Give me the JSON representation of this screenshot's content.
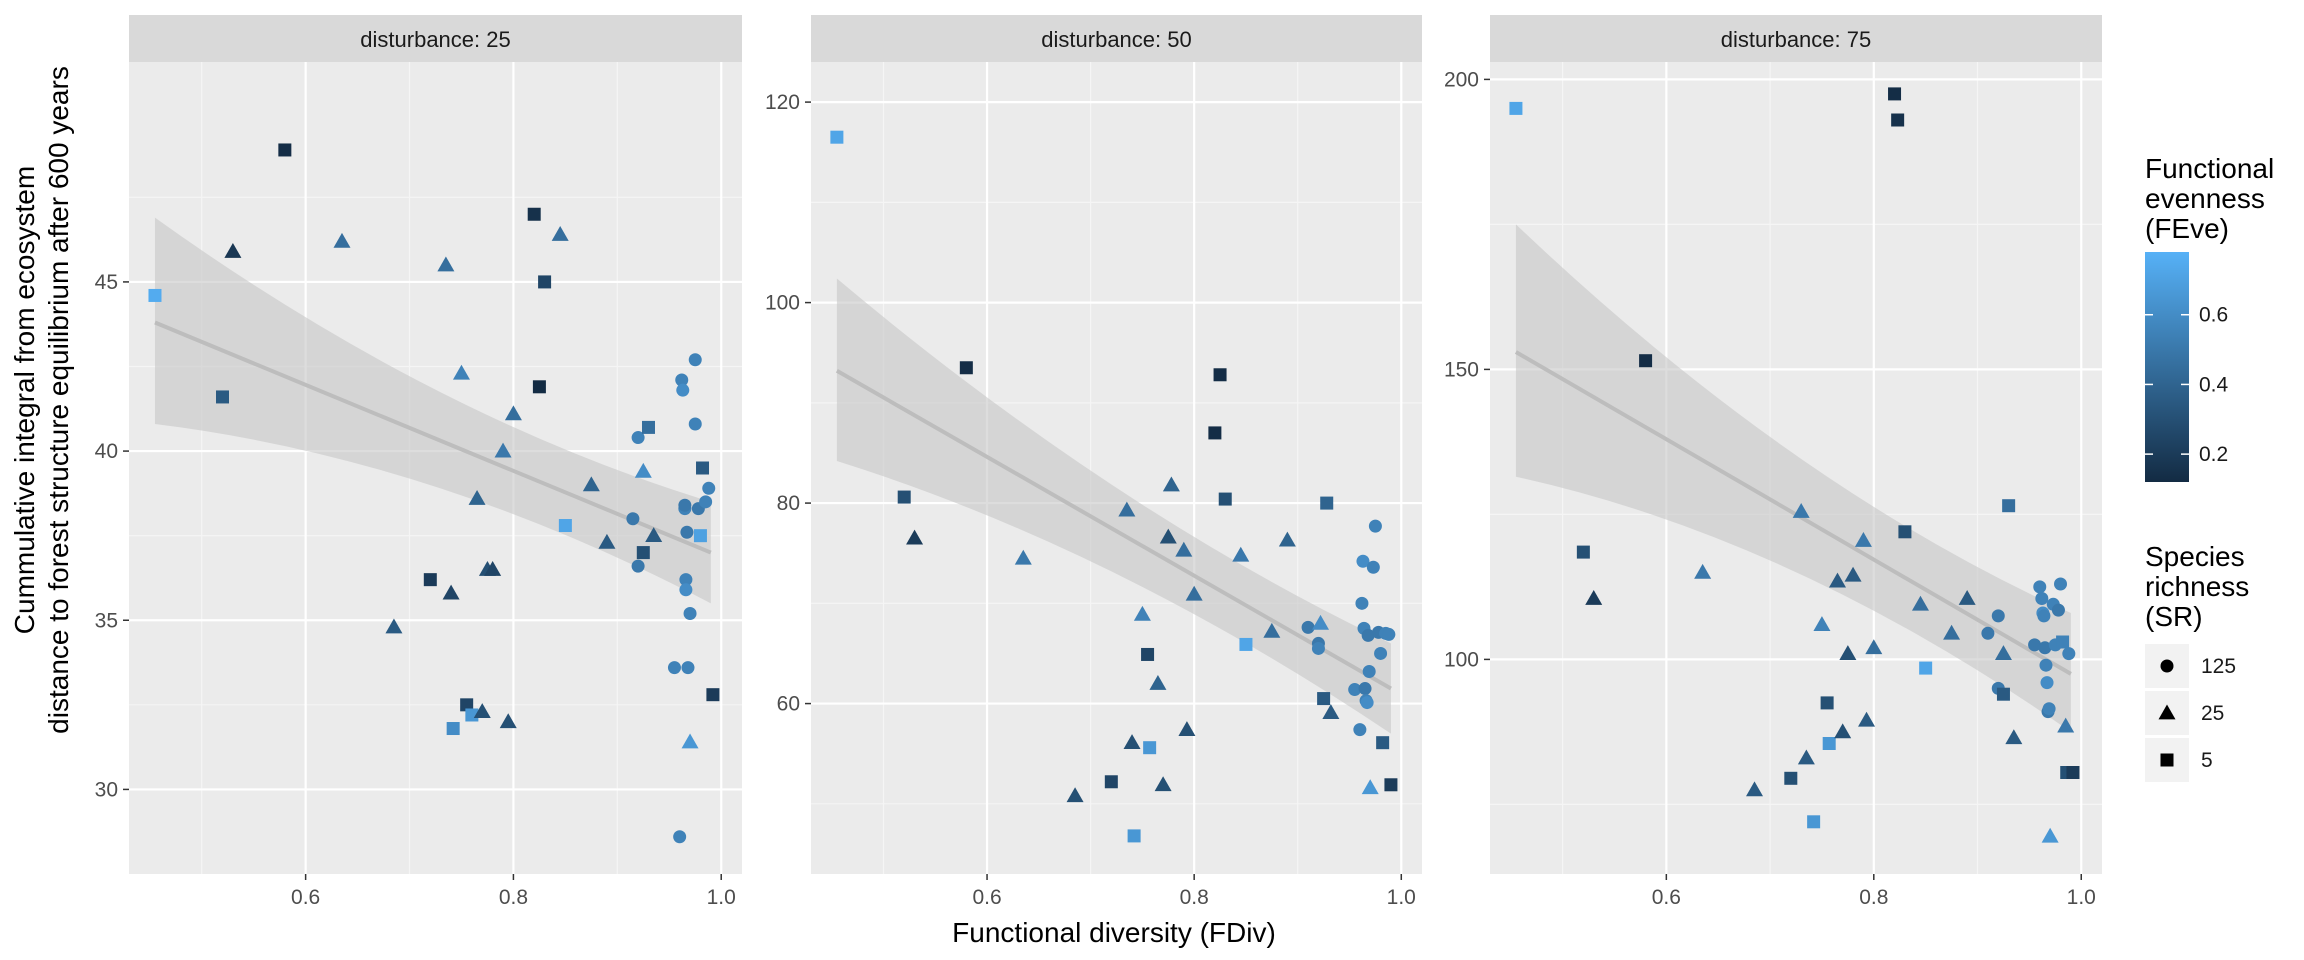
{
  "chart_data": {
    "type": "scatter",
    "xlabel": "Functional diversity (FDiv)",
    "ylabel_lines": [
      "Cummulative integral from ecosystem",
      "distance to forest structure equilibrium after 600 years"
    ],
    "legend_color": {
      "title_lines": [
        "Functional",
        "evenness",
        "(FEve)"
      ],
      "ticks": [
        0.2,
        0.4,
        0.6
      ],
      "range": [
        0.12,
        0.78
      ],
      "low_color": "#132B43",
      "high_color": "#56B1F7"
    },
    "legend_shape": {
      "title_lines": [
        "Species",
        "richness",
        "(SR)"
      ],
      "entries": [
        {
          "label": "125",
          "shape": "circle"
        },
        {
          "label": "25",
          "shape": "triangle"
        },
        {
          "label": "5",
          "shape": "square"
        }
      ]
    },
    "panels": [
      {
        "strip": "disturbance: 25",
        "xlim": [
          0.43,
          1.02
        ],
        "ylim": [
          27.5,
          51.5
        ],
        "xticks": [
          0.6,
          0.8,
          1.0
        ],
        "xtick_labels": [
          "0.6",
          "0.8",
          "1.0"
        ],
        "yticks": [
          30,
          35,
          40,
          45
        ],
        "ytick_labels": [
          "30",
          "35",
          "40",
          "45"
        ],
        "fit": {
          "x0": 0.455,
          "y0": 43.8,
          "x1": 0.99,
          "y1": 37.0,
          "lo0": 40.8,
          "hi0": 46.9,
          "lo1": 35.5,
          "hi1": 38.5
        },
        "points": [
          [
            0.455,
            44.6,
            0.75,
            "square"
          ],
          [
            0.52,
            41.6,
            0.35,
            "square"
          ],
          [
            0.53,
            45.9,
            0.18,
            "triangle"
          ],
          [
            0.58,
            48.9,
            0.13,
            "square"
          ],
          [
            0.635,
            46.2,
            0.45,
            "triangle"
          ],
          [
            0.685,
            34.8,
            0.35,
            "triangle"
          ],
          [
            0.72,
            36.2,
            0.2,
            "square"
          ],
          [
            0.735,
            45.5,
            0.45,
            "triangle"
          ],
          [
            0.74,
            35.8,
            0.25,
            "triangle"
          ],
          [
            0.742,
            31.8,
            0.6,
            "square"
          ],
          [
            0.75,
            42.3,
            0.55,
            "triangle"
          ],
          [
            0.755,
            32.5,
            0.25,
            "square"
          ],
          [
            0.76,
            32.2,
            0.65,
            "square"
          ],
          [
            0.765,
            38.6,
            0.4,
            "triangle"
          ],
          [
            0.77,
            32.3,
            0.3,
            "triangle"
          ],
          [
            0.775,
            36.5,
            0.3,
            "triangle"
          ],
          [
            0.78,
            36.5,
            0.25,
            "triangle"
          ],
          [
            0.79,
            40.0,
            0.5,
            "triangle"
          ],
          [
            0.795,
            32.0,
            0.3,
            "triangle"
          ],
          [
            0.8,
            41.1,
            0.45,
            "triangle"
          ],
          [
            0.82,
            47.0,
            0.15,
            "square"
          ],
          [
            0.825,
            41.9,
            0.12,
            "square"
          ],
          [
            0.83,
            45.0,
            0.25,
            "square"
          ],
          [
            0.845,
            46.4,
            0.45,
            "triangle"
          ],
          [
            0.85,
            37.8,
            0.72,
            "square"
          ],
          [
            0.875,
            39.0,
            0.4,
            "triangle"
          ],
          [
            0.89,
            37.3,
            0.35,
            "triangle"
          ],
          [
            0.915,
            38.0,
            0.5,
            "circle"
          ],
          [
            0.92,
            36.6,
            0.5,
            "circle"
          ],
          [
            0.92,
            40.4,
            0.55,
            "circle"
          ],
          [
            0.925,
            39.4,
            0.6,
            "triangle"
          ],
          [
            0.925,
            37.0,
            0.3,
            "square"
          ],
          [
            0.93,
            40.7,
            0.45,
            "square"
          ],
          [
            0.935,
            37.5,
            0.35,
            "triangle"
          ],
          [
            0.955,
            33.6,
            0.55,
            "circle"
          ],
          [
            0.96,
            28.6,
            0.55,
            "circle"
          ],
          [
            0.962,
            42.1,
            0.55,
            "circle"
          ],
          [
            0.963,
            41.8,
            0.6,
            "circle"
          ],
          [
            0.965,
            38.3,
            0.55,
            "circle"
          ],
          [
            0.965,
            38.4,
            0.5,
            "circle"
          ],
          [
            0.966,
            36.2,
            0.55,
            "circle"
          ],
          [
            0.966,
            35.9,
            0.6,
            "circle"
          ],
          [
            0.967,
            37.6,
            0.5,
            "circle"
          ],
          [
            0.968,
            33.6,
            0.55,
            "circle"
          ],
          [
            0.97,
            35.2,
            0.55,
            "circle"
          ],
          [
            0.97,
            31.4,
            0.65,
            "triangle"
          ],
          [
            0.975,
            40.8,
            0.55,
            "circle"
          ],
          [
            0.975,
            42.7,
            0.55,
            "circle"
          ],
          [
            0.978,
            38.3,
            0.5,
            "circle"
          ],
          [
            0.98,
            37.5,
            0.7,
            "square"
          ],
          [
            0.982,
            39.5,
            0.35,
            "square"
          ],
          [
            0.985,
            38.5,
            0.55,
            "circle"
          ],
          [
            0.988,
            38.9,
            0.55,
            "circle"
          ],
          [
            0.992,
            32.8,
            0.2,
            "square"
          ]
        ]
      },
      {
        "strip": "disturbance: 50",
        "xlim": [
          0.43,
          1.02
        ],
        "ylim": [
          43,
          124
        ],
        "xticks": [
          0.6,
          0.8,
          1.0
        ],
        "xtick_labels": [
          "0.6",
          "0.8",
          "1.0"
        ],
        "yticks": [
          60,
          80,
          100,
          120
        ],
        "ytick_labels": [
          "60",
          "80",
          "100",
          "120"
        ],
        "fit": {
          "x0": 0.455,
          "y0": 93.2,
          "x1": 0.99,
          "y1": 61.5,
          "lo0": 84.2,
          "hi0": 102.4,
          "lo1": 57.0,
          "hi1": 66.0
        },
        "points": [
          [
            0.455,
            116.5,
            0.72,
            "square"
          ],
          [
            0.52,
            80.6,
            0.3,
            "square"
          ],
          [
            0.53,
            76.5,
            0.2,
            "triangle"
          ],
          [
            0.58,
            93.5,
            0.13,
            "square"
          ],
          [
            0.635,
            74.5,
            0.5,
            "triangle"
          ],
          [
            0.685,
            50.8,
            0.3,
            "triangle"
          ],
          [
            0.72,
            52.2,
            0.25,
            "square"
          ],
          [
            0.735,
            79.3,
            0.45,
            "triangle"
          ],
          [
            0.74,
            56.1,
            0.3,
            "triangle"
          ],
          [
            0.742,
            46.8,
            0.65,
            "square"
          ],
          [
            0.75,
            68.9,
            0.55,
            "triangle"
          ],
          [
            0.755,
            64.9,
            0.25,
            "square"
          ],
          [
            0.757,
            55.6,
            0.65,
            "square"
          ],
          [
            0.765,
            62.0,
            0.4,
            "triangle"
          ],
          [
            0.77,
            51.9,
            0.3,
            "triangle"
          ],
          [
            0.775,
            76.6,
            0.3,
            "triangle"
          ],
          [
            0.778,
            81.8,
            0.4,
            "triangle"
          ],
          [
            0.79,
            75.3,
            0.45,
            "triangle"
          ],
          [
            0.793,
            57.4,
            0.3,
            "triangle"
          ],
          [
            0.8,
            70.9,
            0.45,
            "triangle"
          ],
          [
            0.82,
            87.0,
            0.13,
            "square"
          ],
          [
            0.825,
            92.8,
            0.13,
            "square"
          ],
          [
            0.83,
            80.4,
            0.3,
            "square"
          ],
          [
            0.845,
            74.8,
            0.5,
            "triangle"
          ],
          [
            0.85,
            65.9,
            0.72,
            "square"
          ],
          [
            0.875,
            67.2,
            0.45,
            "triangle"
          ],
          [
            0.89,
            76.3,
            0.4,
            "triangle"
          ],
          [
            0.91,
            67.6,
            0.5,
            "circle"
          ],
          [
            0.92,
            66.0,
            0.5,
            "circle"
          ],
          [
            0.92,
            65.5,
            0.55,
            "circle"
          ],
          [
            0.922,
            68.0,
            0.6,
            "triangle"
          ],
          [
            0.925,
            60.5,
            0.35,
            "square"
          ],
          [
            0.928,
            80.0,
            0.4,
            "square"
          ],
          [
            0.932,
            59.1,
            0.35,
            "triangle"
          ],
          [
            0.955,
            61.4,
            0.55,
            "circle"
          ],
          [
            0.96,
            57.4,
            0.55,
            "circle"
          ],
          [
            0.962,
            70.0,
            0.55,
            "circle"
          ],
          [
            0.963,
            74.2,
            0.6,
            "circle"
          ],
          [
            0.964,
            67.5,
            0.55,
            "circle"
          ],
          [
            0.965,
            61.5,
            0.5,
            "circle"
          ],
          [
            0.966,
            60.3,
            0.55,
            "circle"
          ],
          [
            0.967,
            60.1,
            0.6,
            "circle"
          ],
          [
            0.968,
            66.8,
            0.5,
            "circle"
          ],
          [
            0.969,
            63.2,
            0.55,
            "circle"
          ],
          [
            0.97,
            51.6,
            0.65,
            "triangle"
          ],
          [
            0.973,
            73.6,
            0.55,
            "circle"
          ],
          [
            0.975,
            77.7,
            0.55,
            "circle"
          ],
          [
            0.978,
            67.1,
            0.5,
            "circle"
          ],
          [
            0.98,
            65.0,
            0.55,
            "circle"
          ],
          [
            0.982,
            56.1,
            0.35,
            "square"
          ],
          [
            0.985,
            67.0,
            0.55,
            "circle"
          ],
          [
            0.988,
            66.9,
            0.55,
            "circle"
          ],
          [
            0.99,
            51.9,
            0.2,
            "square"
          ]
        ]
      },
      {
        "strip": "disturbance: 75",
        "xlim": [
          0.43,
          1.02
        ],
        "ylim": [
          63,
          203
        ],
        "xticks": [
          0.6,
          0.8,
          1.0
        ],
        "xtick_labels": [
          "0.6",
          "0.8",
          "1.0"
        ],
        "yticks": [
          100,
          150,
          200
        ],
        "ytick_labels": [
          "100",
          "150",
          "200"
        ],
        "fit": {
          "x0": 0.455,
          "y0": 153.0,
          "x1": 0.99,
          "y1": 97.5,
          "lo0": 131.5,
          "hi0": 175.0,
          "lo1": 87.5,
          "hi1": 108.0
        },
        "points": [
          [
            0.455,
            195.0,
            0.72,
            "square"
          ],
          [
            0.52,
            118.5,
            0.3,
            "square"
          ],
          [
            0.53,
            110.5,
            0.2,
            "triangle"
          ],
          [
            0.58,
            151.5,
            0.13,
            "square"
          ],
          [
            0.635,
            115.0,
            0.5,
            "triangle"
          ],
          [
            0.685,
            77.5,
            0.35,
            "triangle"
          ],
          [
            0.72,
            79.5,
            0.3,
            "square"
          ],
          [
            0.73,
            125.5,
            0.5,
            "triangle"
          ],
          [
            0.735,
            83.0,
            0.35,
            "triangle"
          ],
          [
            0.742,
            72.0,
            0.65,
            "square"
          ],
          [
            0.75,
            106.0,
            0.55,
            "triangle"
          ],
          [
            0.755,
            92.5,
            0.3,
            "square"
          ],
          [
            0.757,
            85.5,
            0.65,
            "square"
          ],
          [
            0.765,
            113.5,
            0.35,
            "triangle"
          ],
          [
            0.77,
            87.5,
            0.3,
            "triangle"
          ],
          [
            0.775,
            101.0,
            0.3,
            "triangle"
          ],
          [
            0.78,
            114.5,
            0.35,
            "triangle"
          ],
          [
            0.79,
            120.5,
            0.5,
            "triangle"
          ],
          [
            0.793,
            89.5,
            0.35,
            "triangle"
          ],
          [
            0.8,
            102.0,
            0.45,
            "triangle"
          ],
          [
            0.82,
            197.5,
            0.13,
            "square"
          ],
          [
            0.823,
            193.0,
            0.15,
            "square"
          ],
          [
            0.83,
            122.0,
            0.3,
            "square"
          ],
          [
            0.845,
            109.5,
            0.45,
            "triangle"
          ],
          [
            0.85,
            98.5,
            0.72,
            "square"
          ],
          [
            0.875,
            104.5,
            0.45,
            "triangle"
          ],
          [
            0.89,
            110.5,
            0.35,
            "triangle"
          ],
          [
            0.91,
            104.5,
            0.5,
            "circle"
          ],
          [
            0.92,
            107.5,
            0.5,
            "circle"
          ],
          [
            0.92,
            95.0,
            0.5,
            "circle"
          ],
          [
            0.925,
            101.0,
            0.45,
            "triangle"
          ],
          [
            0.925,
            94.0,
            0.35,
            "square"
          ],
          [
            0.93,
            126.5,
            0.45,
            "square"
          ],
          [
            0.935,
            86.5,
            0.35,
            "triangle"
          ],
          [
            0.955,
            102.5,
            0.5,
            "circle"
          ],
          [
            0.96,
            112.5,
            0.55,
            "circle"
          ],
          [
            0.962,
            110.5,
            0.55,
            "circle"
          ],
          [
            0.963,
            108.0,
            0.6,
            "circle"
          ],
          [
            0.964,
            107.5,
            0.55,
            "circle"
          ],
          [
            0.965,
            102.0,
            0.5,
            "circle"
          ],
          [
            0.966,
            99.0,
            0.55,
            "circle"
          ],
          [
            0.967,
            96.0,
            0.6,
            "circle"
          ],
          [
            0.968,
            91.0,
            0.5,
            "circle"
          ],
          [
            0.969,
            91.5,
            0.55,
            "circle"
          ],
          [
            0.97,
            69.5,
            0.65,
            "triangle"
          ],
          [
            0.973,
            109.5,
            0.55,
            "circle"
          ],
          [
            0.975,
            102.5,
            0.55,
            "circle"
          ],
          [
            0.978,
            108.5,
            0.5,
            "circle"
          ],
          [
            0.98,
            113.0,
            0.55,
            "circle"
          ],
          [
            0.982,
            103.0,
            0.55,
            "square"
          ],
          [
            0.985,
            88.5,
            0.5,
            "triangle"
          ],
          [
            0.986,
            80.5,
            0.3,
            "square"
          ],
          [
            0.988,
            101.0,
            0.55,
            "circle"
          ],
          [
            0.992,
            80.5,
            0.2,
            "square"
          ]
        ]
      }
    ]
  }
}
